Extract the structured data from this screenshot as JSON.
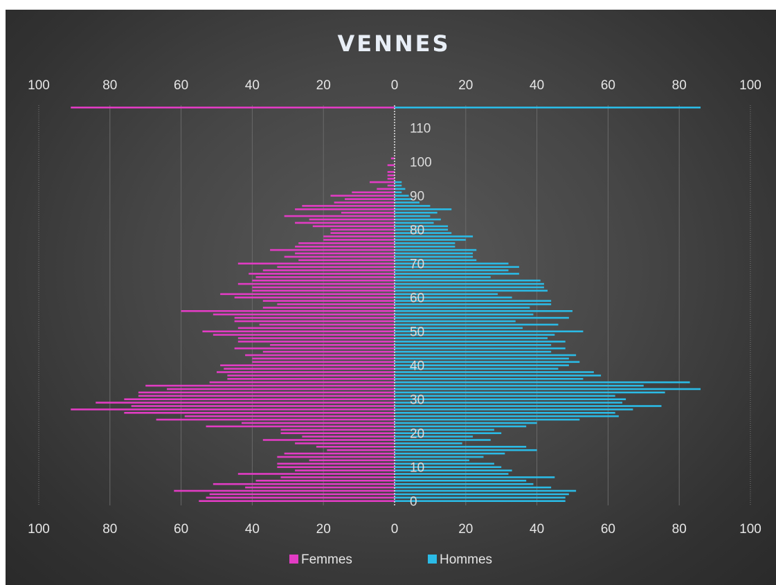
{
  "chart_data": {
    "type": "bar",
    "orientation": "horizontal",
    "title": "VENNES",
    "xlim": [
      -100,
      100
    ],
    "x_tick_labels": [
      "100",
      "80",
      "60",
      "40",
      "20",
      "0",
      "20",
      "40",
      "60",
      "80",
      "100"
    ],
    "age_tick_labels": [
      "0",
      "10",
      "20",
      "30",
      "40",
      "50",
      "60",
      "70",
      "80",
      "90",
      "100",
      "110"
    ],
    "grid": true,
    "legend_position": "bottom",
    "categories_note_ages": [
      0,
      116
    ],
    "series": [
      {
        "name": "Femmes",
        "color": "#e23cc4",
        "values": [
          55,
          53,
          52,
          62,
          42,
          51,
          39,
          32,
          44,
          28,
          33,
          33,
          24,
          33,
          31,
          19,
          22,
          28,
          37,
          26,
          32,
          32,
          53,
          43,
          67,
          59,
          76,
          91,
          74,
          84,
          76,
          72,
          72,
          64,
          70,
          52,
          47,
          47,
          50,
          48,
          49,
          40,
          40,
          42,
          37,
          45,
          35,
          44,
          44,
          51,
          54,
          44,
          38,
          45,
          45,
          51,
          60,
          37,
          33,
          37,
          45,
          49,
          40,
          40,
          44,
          40,
          39,
          41,
          37,
          33,
          44,
          27,
          31,
          28,
          35,
          28,
          27,
          20,
          20,
          18,
          18,
          23,
          28,
          24,
          31,
          15,
          28,
          26,
          17,
          14,
          18,
          12,
          5,
          2,
          7,
          2,
          2,
          2,
          0,
          2,
          0,
          1,
          0,
          0,
          0,
          0,
          0,
          0,
          0,
          0,
          0,
          0,
          0,
          0,
          0,
          0,
          91
        ]
      },
      {
        "name": "Hommes",
        "color": "#2bbbe6",
        "values": [
          48,
          48,
          49,
          51,
          44,
          39,
          37,
          45,
          32,
          33,
          30,
          28,
          21,
          25,
          31,
          40,
          37,
          19,
          27,
          22,
          30,
          28,
          37,
          40,
          52,
          63,
          62,
          67,
          75,
          64,
          65,
          62,
          76,
          86,
          70,
          83,
          53,
          58,
          56,
          46,
          49,
          52,
          49,
          51,
          44,
          48,
          44,
          48,
          43,
          45,
          53,
          36,
          46,
          34,
          49,
          39,
          50,
          38,
          44,
          44,
          33,
          29,
          43,
          42,
          42,
          41,
          27,
          35,
          32,
          35,
          32,
          23,
          22,
          22,
          23,
          17,
          17,
          20,
          22,
          16,
          15,
          15,
          11,
          13,
          10,
          12,
          16,
          10,
          7,
          5,
          4,
          2,
          3,
          2,
          2,
          0,
          0,
          0,
          0,
          0,
          0,
          0,
          0,
          0,
          0,
          0,
          0,
          0,
          0,
          0,
          0,
          0,
          0,
          0,
          0,
          0,
          86
        ]
      }
    ]
  }
}
